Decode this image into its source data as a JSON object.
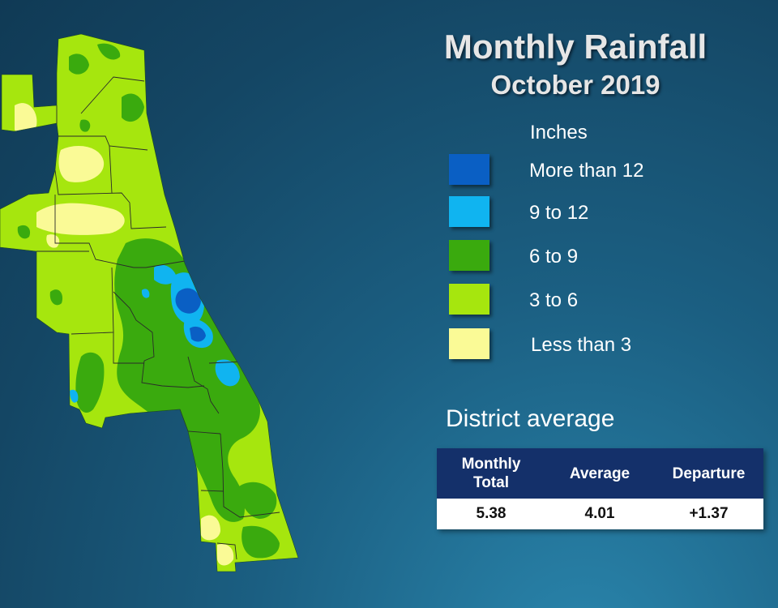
{
  "title": "Monthly Rainfall",
  "subtitle": "October 2019",
  "legend": {
    "title": "Inches",
    "items": [
      {
        "label": "More than 12",
        "color": "#0a5fc4"
      },
      {
        "label": "9 to 12",
        "color": "#10b4f0"
      },
      {
        "label": "6 to 9",
        "color": "#3aaa0e"
      },
      {
        "label": "3 to 6",
        "color": "#a6e60e"
      },
      {
        "label": "Less than 3",
        "color": "#fafa96"
      }
    ]
  },
  "district": {
    "title": "District average",
    "headers": {
      "monthly_total_line1": "Monthly",
      "monthly_total_line2": "Total",
      "average": "Average",
      "departure": "Departure"
    },
    "values": {
      "monthly_total": "5.38",
      "average": "4.01",
      "departure": "+1.37"
    }
  }
}
